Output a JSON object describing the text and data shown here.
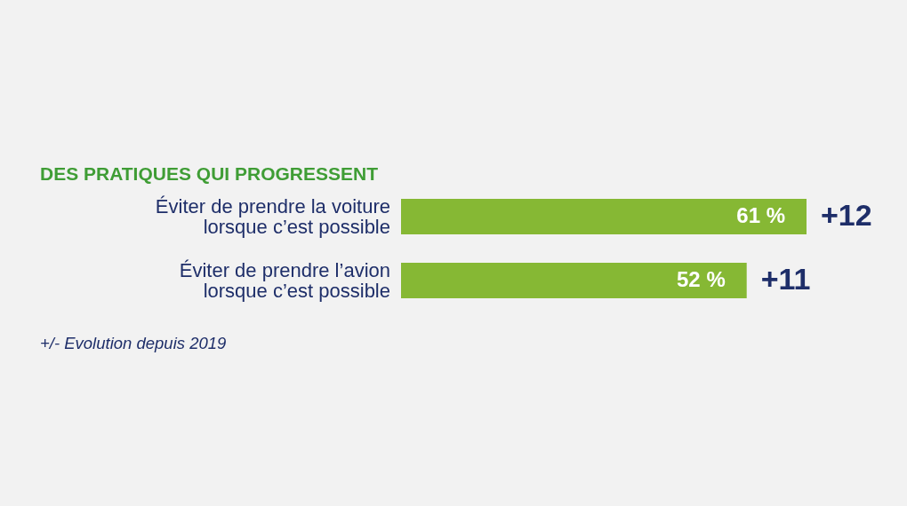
{
  "chart_data": {
    "type": "bar",
    "orientation": "horizontal",
    "title": "DES PRATIQUES QUI PROGRESSENT",
    "categories": [
      "Éviter de prendre la voiture lorsque c’est possible",
      "Éviter de prendre l’avion lorsque c’est possible"
    ],
    "values": [
      61,
      52
    ],
    "color": "#86b834",
    "value_labels": [
      "61 %",
      "52 %"
    ],
    "tick_labels": "y",
    "annotations": [
      {
        "text": "+12",
        "x": 61,
        "y": "Éviter de prendre la voiture lorsque c’est possible"
      },
      {
        "text": "+11",
        "x": 52,
        "y": "Éviter de prendre l’avion lorsque c’est possible"
      },
      "+/- Evolution depuis 2019"
    ]
  }
}
